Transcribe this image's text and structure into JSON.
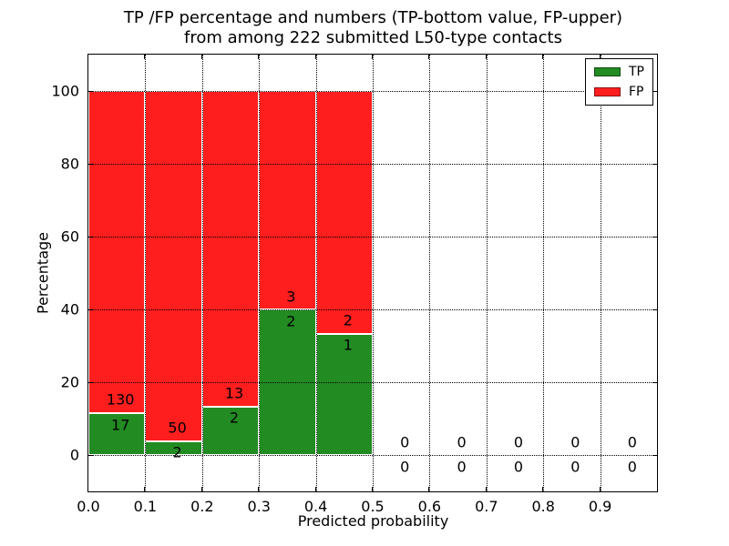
{
  "chart_data": {
    "type": "bar",
    "stacked": true,
    "title_line1": "TP /FP percentage and numbers (TP-bottom value, FP-upper)",
    "title_line2": "from among 222 submitted L50-type contacts",
    "xlabel": "Predicted probability",
    "ylabel": "Percentage",
    "total_contacts": 222,
    "xlim": [
      0.0,
      1.0
    ],
    "ylim": [
      -10,
      110
    ],
    "grid": "dotted",
    "xtick_values": [
      0.0,
      0.1,
      0.2,
      0.3,
      0.4,
      0.5,
      0.6,
      0.7,
      0.8,
      0.9
    ],
    "xtick_labels": [
      "0.0",
      "0.1",
      "0.2",
      "0.3",
      "0.4",
      "0.5",
      "0.6",
      "0.7",
      "0.8",
      "0.9"
    ],
    "ytick_values": [
      0,
      20,
      40,
      60,
      80,
      100
    ],
    "ytick_labels": [
      "0",
      "20",
      "40",
      "60",
      "80",
      "100"
    ],
    "legend_position": "upper-right",
    "legend": [
      {
        "label": "TP",
        "color": "#228b22"
      },
      {
        "label": "FP",
        "color": "#ff1e1e"
      }
    ],
    "colors": {
      "tp": "#228b22",
      "fp": "#ff1e1e",
      "bar_edge": "#ffffff",
      "text": "#000000"
    },
    "bins": [
      {
        "range": [
          0.0,
          0.1
        ],
        "tp_count": 17,
        "fp_count": 130,
        "tp_pct": 11.56,
        "fp_pct": 88.44
      },
      {
        "range": [
          0.1,
          0.2
        ],
        "tp_count": 2,
        "fp_count": 50,
        "tp_pct": 3.85,
        "fp_pct": 96.15
      },
      {
        "range": [
          0.2,
          0.3
        ],
        "tp_count": 2,
        "fp_count": 13,
        "tp_pct": 13.33,
        "fp_pct": 86.67
      },
      {
        "range": [
          0.3,
          0.4
        ],
        "tp_count": 2,
        "fp_count": 3,
        "tp_pct": 40.0,
        "fp_pct": 60.0
      },
      {
        "range": [
          0.4,
          0.5
        ],
        "tp_count": 1,
        "fp_count": 2,
        "tp_pct": 33.33,
        "fp_pct": 66.67
      },
      {
        "range": [
          0.5,
          0.6
        ],
        "tp_count": 0,
        "fp_count": 0,
        "tp_pct": 0,
        "fp_pct": 0
      },
      {
        "range": [
          0.6,
          0.7
        ],
        "tp_count": 0,
        "fp_count": 0,
        "tp_pct": 0,
        "fp_pct": 0
      },
      {
        "range": [
          0.7,
          0.8
        ],
        "tp_count": 0,
        "fp_count": 0,
        "tp_pct": 0,
        "fp_pct": 0
      },
      {
        "range": [
          0.8,
          0.9
        ],
        "tp_count": 0,
        "fp_count": 0,
        "tp_pct": 0,
        "fp_pct": 0
      },
      {
        "range": [
          0.9,
          1.0
        ],
        "tp_count": 0,
        "fp_count": 0,
        "tp_pct": 0,
        "fp_pct": 0
      }
    ]
  }
}
